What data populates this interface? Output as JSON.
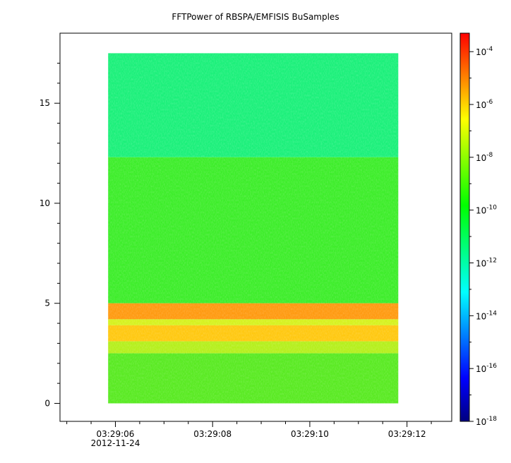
{
  "chart_data": {
    "type": "heatmap",
    "title": "FFTPower of RBSPA/EMFISIS  BuSamples",
    "xlabel": "",
    "ylabel": "",
    "x_date_label": "2012-11-24",
    "x_ticks": [
      {
        "t": 6,
        "label": "03:29:06"
      },
      {
        "t": 8,
        "label": "03:29:08"
      },
      {
        "t": 10,
        "label": "03:29:10"
      },
      {
        "t": 12,
        "label": "03:29:12"
      }
    ],
    "x_range_seconds": [
      4.86,
      12.92
    ],
    "data_x_extent_seconds": [
      5.85,
      11.82
    ],
    "y_ticks": [
      0,
      5,
      10,
      15
    ],
    "y_range": [
      -0.9,
      18.5
    ],
    "data_y_extent": [
      0,
      17.5
    ],
    "colorbar": {
      "scale": "log",
      "range_exp": [
        -18,
        -3.3
      ],
      "tick_exponents": [
        -4,
        -6,
        -8,
        -10,
        -12,
        -14,
        -16,
        -18
      ],
      "tick_base": "10",
      "colors": [
        "#00007f",
        "#0000ff",
        "#007fff",
        "#00ffff",
        "#00ff7f",
        "#00ff00",
        "#7fff00",
        "#ffff00",
        "#ff7f00",
        "#ff0000"
      ]
    },
    "bands": [
      {
        "y": [
          12.3,
          17.5
        ],
        "level_exp": -11.8,
        "description_color": "#1bf07a"
      },
      {
        "y": [
          5.0,
          12.3
        ],
        "level_exp": -10.6,
        "description_color": "#3ded2a"
      },
      {
        "y": [
          4.2,
          5.0
        ],
        "level_exp": -6.8,
        "description_color": "#ff9a10"
      },
      {
        "y": [
          3.9,
          4.2
        ],
        "level_exp": -8.5,
        "description_color": "#d6f21e"
      },
      {
        "y": [
          3.1,
          3.9
        ],
        "level_exp": -7.4,
        "description_color": "#ffc810"
      },
      {
        "y": [
          2.5,
          3.1
        ],
        "level_exp": -8.8,
        "description_color": "#b5ef1c"
      },
      {
        "y": [
          0,
          2.5
        ],
        "level_exp": -10.0,
        "description_color": "#59ea22"
      }
    ]
  }
}
